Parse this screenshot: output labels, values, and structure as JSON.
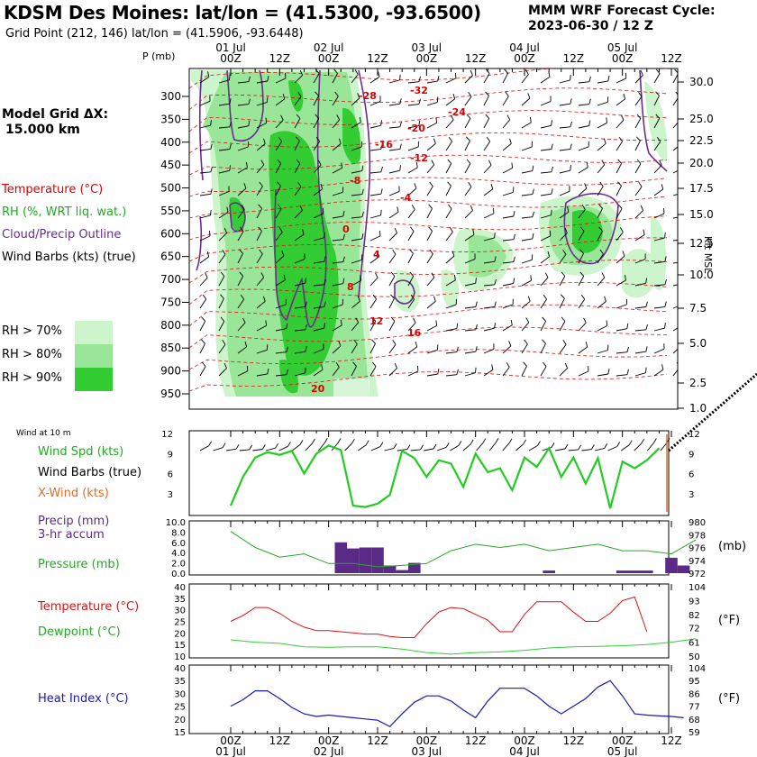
{
  "header": {
    "title": "KDSM Des Moines:  lat/lon = (41.5300, -93.6500)",
    "grid_point": "Grid Point (212, 146) lat/lon = (41.5906, -93.6448)",
    "cycle_line1": "MMM WRF Forecast Cycle:",
    "cycle_line2": "2023-06-30 / 12  Z"
  },
  "model_grid": {
    "line1": "Model Grid ΔX:",
    "line2": "15.000 km"
  },
  "legend": {
    "temperature": "Temperature (°C)",
    "rh": "RH (%, WRT liq. wat.)",
    "cloud": "Cloud/Precip Outline",
    "wind_barbs": "Wind Barbs (kts) (true)",
    "rh70": "RH > 70%",
    "rh80": "RH > 80%",
    "rh90": "RH > 90%",
    "p_label": "P (mb)",
    "kft_label": "Kft MSL",
    "colors": {
      "temperature": "#dd0000",
      "rh70": "#ccf5cc",
      "rh80": "#99e699",
      "rh90": "#33cc33",
      "cloud": "#6a2c91"
    }
  },
  "panels": {
    "wind": {
      "caption": "Wind at 10 m",
      "speed_label": "Wind Spd (kts)",
      "barbs_label": "Wind Barbs (true)",
      "xwind_label": "X-Wind (kts)"
    },
    "precip": {
      "precip_label": "Precip (mm)",
      "accum_label": "3-hr accum",
      "pressure_label": "Pressure (mb)",
      "unit_right": "(mb)"
    },
    "temp": {
      "temp_label": "Temperature (°C)",
      "dew_label": "Dewpoint (°C)",
      "unit_right": "(°F)"
    },
    "heat": {
      "heat_label": "Heat Index (°C)",
      "unit_right": "(°F)"
    }
  },
  "time_axis": {
    "hour_labels": [
      "00Z",
      "12Z",
      "00Z",
      "12Z",
      "00Z",
      "12Z",
      "00Z",
      "12Z",
      "00Z",
      "12Z"
    ],
    "day_labels": [
      "01 Jul",
      "02 Jul",
      "03 Jul",
      "04 Jul",
      "05 Jul"
    ]
  },
  "chart_data": [
    {
      "type": "heatmap",
      "title": "KDSM Des Moines:  lat/lon = (41.5300, -93.6500)",
      "y_left_label": "P (mb)",
      "y_left_ticks": [
        "300",
        "350",
        "400",
        "450",
        "500",
        "550",
        "600",
        "650",
        "700",
        "750",
        "800",
        "850",
        "900",
        "950"
      ],
      "y_right_label": "Kft MSL",
      "y_right_ticks": [
        "30.0",
        "25.0",
        "22.5",
        "20.0",
        "17.5",
        "15.0",
        "12.5",
        "10.0",
        "7.5",
        "5.0",
        "2.5",
        "1.0"
      ],
      "temperature_contour_labels": [
        "-28",
        "-32",
        "-24",
        "-20",
        "-16",
        "-12",
        "-8",
        "-4",
        "0",
        "4",
        "8",
        "12",
        "16",
        "20"
      ]
    },
    {
      "type": "line",
      "series": [
        {
          "name": "Wind Spd (kts)",
          "color": "#22cc22",
          "x": [
            0,
            3,
            6,
            9,
            12,
            15,
            18,
            21,
            24,
            27,
            30,
            33,
            36,
            39,
            42,
            45,
            48,
            51,
            54,
            57,
            60,
            63,
            66,
            69,
            72,
            75,
            78,
            81,
            84,
            87,
            90,
            93,
            96,
            99,
            102,
            105
          ],
          "values": [
            1.2,
            5.5,
            8.4,
            9.2,
            8.8,
            9.4,
            6.0,
            9.0,
            10.2,
            9.5,
            1.2,
            1.0,
            1.5,
            2.8,
            9.4,
            8.3,
            5.5,
            8.0,
            7.5,
            4.0,
            9.0,
            6.2,
            6.8,
            3.5,
            8.4,
            7.0,
            9.8,
            5.5,
            8.4,
            4.5,
            8.3,
            0.8,
            7.8,
            6.8,
            8.0,
            9.8
          ]
        }
      ],
      "y_ticks_left": [
        "12",
        "9",
        "6",
        "3"
      ],
      "y_ticks_right": [
        "12",
        "9",
        "6",
        "3"
      ],
      "ylim": [
        0,
        12
      ]
    },
    {
      "type": "bar",
      "series": [
        {
          "name": "Precip (mm)",
          "color": "#5b2a86",
          "x": [
            27,
            30,
            33,
            36,
            39,
            42,
            45,
            78,
            96,
            99,
            102,
            108,
            111
          ],
          "values": [
            6.0,
            4.8,
            5.0,
            5.0,
            1.5,
            0.6,
            2.0,
            0.5,
            0.5,
            0.5,
            0.5,
            3.0,
            1.5
          ]
        },
        {
          "name": "Pressure (mb)",
          "color": "#22aa22",
          "x": [
            0,
            6,
            12,
            18,
            24,
            30,
            36,
            42,
            48,
            54,
            60,
            66,
            72,
            78,
            84,
            90,
            96,
            102,
            108,
            114
          ],
          "values": [
            978.5,
            976.0,
            974.5,
            975.0,
            973.5,
            973.5,
            973.0,
            973.2,
            973.5,
            975.5,
            976.5,
            976.0,
            976.5,
            975.5,
            976.0,
            976.5,
            975.5,
            975.5,
            975.0,
            977.2
          ]
        }
      ],
      "y_ticks_left": [
        "10.0",
        "8.0",
        "6.0",
        "4.0",
        "2.0",
        "0.0"
      ],
      "y_ticks_right": [
        "980",
        "978",
        "976",
        "974",
        "972"
      ],
      "ylim": [
        0,
        10
      ],
      "ylim_right": [
        972,
        980
      ]
    },
    {
      "type": "line",
      "series": [
        {
          "name": "Temperature (°C)",
          "color": "#dd1111",
          "x": [
            0,
            3,
            6,
            9,
            12,
            15,
            18,
            21,
            24,
            27,
            30,
            33,
            36,
            39,
            42,
            45,
            48,
            51,
            54,
            57,
            60,
            63,
            66,
            69,
            72,
            75,
            78,
            81,
            84,
            87,
            90,
            93,
            96,
            99,
            102
          ],
          "values": [
            25,
            27.5,
            31,
            31,
            28.5,
            25,
            22.5,
            21,
            21,
            20.5,
            20,
            19.5,
            19.5,
            18.5,
            18,
            18,
            24,
            29,
            31,
            30.5,
            28,
            25.5,
            20.5,
            20.5,
            28,
            33.5,
            33.5,
            33.5,
            29,
            25,
            25,
            28.5,
            34,
            35.5,
            20.5
          ]
        },
        {
          "name": "Dewpoint (°C)",
          "color": "#33cc33",
          "x": [
            0,
            6,
            12,
            18,
            24,
            30,
            36,
            42,
            48,
            54,
            60,
            66,
            72,
            78,
            84,
            90,
            96,
            102,
            108,
            114
          ],
          "values": [
            17,
            16,
            15.5,
            14,
            13.8,
            14,
            14,
            13,
            11.5,
            10.8,
            11.5,
            11.8,
            12.5,
            13.5,
            14,
            14.2,
            14.5,
            15,
            16,
            17.5
          ]
        }
      ],
      "y_ticks_left": [
        "40",
        "35",
        "30",
        "25",
        "20",
        "15",
        "10"
      ],
      "y_ticks_right": [
        "104",
        "93",
        "82",
        "72",
        "61",
        "50"
      ],
      "ylim": [
        10,
        40
      ]
    },
    {
      "type": "line",
      "series": [
        {
          "name": "Heat Index (°C)",
          "color": "#1a1aaa",
          "x": [
            0,
            3,
            6,
            9,
            12,
            15,
            18,
            21,
            24,
            27,
            30,
            33,
            36,
            39,
            42,
            45,
            48,
            51,
            54,
            57,
            60,
            63,
            66,
            69,
            72,
            75,
            78,
            81,
            84,
            87,
            90,
            93,
            96,
            99,
            102,
            105,
            108,
            111
          ],
          "values": [
            25,
            27.5,
            31,
            31,
            28,
            24.5,
            22,
            21,
            21.5,
            21,
            20.5,
            20,
            19.5,
            17,
            22,
            26.5,
            29,
            29,
            27,
            23.5,
            20.5,
            27,
            32,
            32,
            32,
            29,
            25,
            22,
            25,
            28,
            32.5,
            35,
            29,
            22,
            21.5,
            21.2,
            21,
            20.5
          ]
        }
      ],
      "y_ticks_left": [
        "40",
        "35",
        "30",
        "25",
        "20",
        "15"
      ],
      "y_ticks_right": [
        "104",
        "95",
        "86",
        "77",
        "68",
        "59"
      ],
      "ylim": [
        15,
        40
      ]
    }
  ]
}
